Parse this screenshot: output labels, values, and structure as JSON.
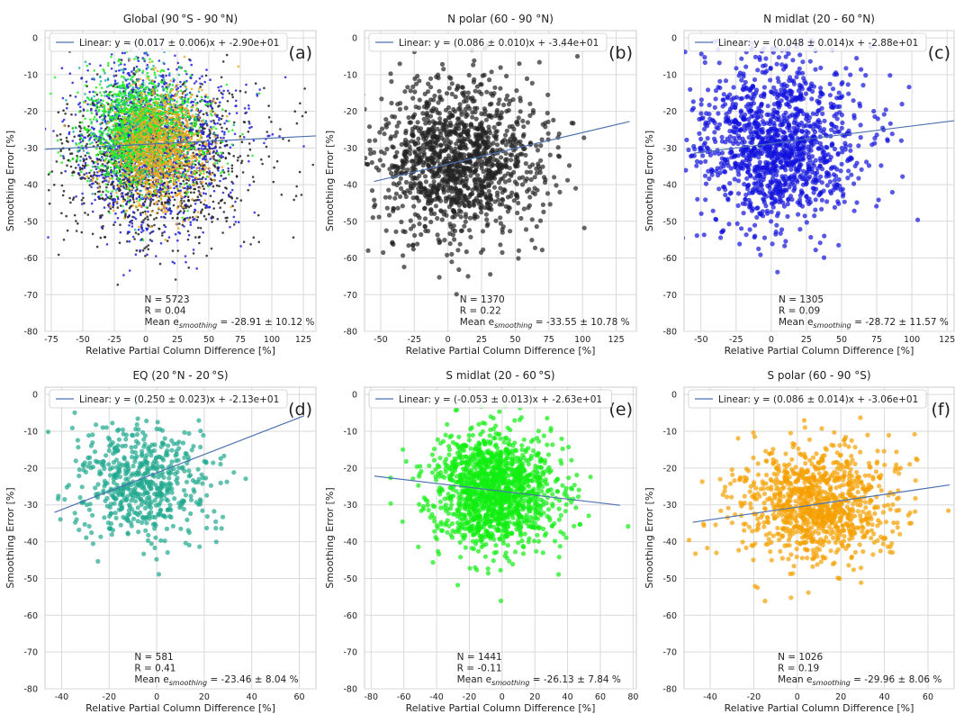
{
  "chart_data": [
    {
      "type": "scatter",
      "title": "Global (90$^\\circ$S - 90$^\\circ$N)",
      "title_display": "Global (90 °S - 90 °N)",
      "panel_label": "(a)",
      "xlabel": "Relative Partial Column Difference [%]",
      "ylabel": "Smoothing Error [%]",
      "xlim": [
        -80,
        135
      ],
      "ylim": [
        -80,
        2
      ],
      "xticks": [
        -75,
        -50,
        -25,
        0,
        25,
        50,
        75,
        100,
        125
      ],
      "yticks": [
        0,
        -10,
        -20,
        -30,
        -40,
        -50,
        -60,
        -70,
        -80
      ],
      "grid": true,
      "legend": {
        "location": "top-left",
        "entry": "Linear: y = (0.017 ± 0.006)x + -2.90e+01"
      },
      "fit": {
        "slope": 0.017,
        "intercept": -29.0,
        "x_range": [
          -80,
          135
        ]
      },
      "stats": {
        "n": "N = 5723",
        "r": "R = 0.04",
        "mean_prefix": "Mean e",
        "mean_sub": "smoothing",
        "mean_value": " = -28.91 ± 10.12 %"
      },
      "marker_size": "small",
      "points": {
        "count": 5723,
        "subsets": [
          {
            "color": "#222222",
            "count": 1370,
            "x_mean": 4,
            "x_std": 35,
            "y_mean": -33.5,
            "y_std": 10.8
          },
          {
            "color": "#2222dd",
            "count": 1305,
            "x_mean": 2,
            "x_std": 30,
            "y_mean": -28.7,
            "y_std": 11.6
          },
          {
            "color": "#20b2a0",
            "count": 581,
            "x_mean": -5,
            "x_std": 18,
            "y_mean": -23.5,
            "y_std": 8
          },
          {
            "color": "#22ee22",
            "count": 1441,
            "x_mean": -5,
            "x_std": 22,
            "y_mean": -26.1,
            "y_std": 7.8
          },
          {
            "color": "#f5a623",
            "count": 1026,
            "x_mean": 8,
            "x_std": 18,
            "y_mean": -30,
            "y_std": 8
          }
        ]
      }
    },
    {
      "type": "scatter",
      "title": "N polar (60 - 90 $^\\circ$N)",
      "title_display": "N polar (60 - 90 °N)",
      "panel_label": "(b)",
      "xlabel": "Relative Partial Column Difference [%]",
      "ylabel": "Smoothing Error [%]",
      "xlim": [
        -62,
        140
      ],
      "ylim": [
        -80,
        2
      ],
      "xticks": [
        -50,
        -25,
        0,
        25,
        50,
        75,
        100,
        125
      ],
      "yticks": [
        0,
        -10,
        -20,
        -30,
        -40,
        -50,
        -60,
        -70,
        -80
      ],
      "grid": true,
      "legend": {
        "location": "top-left",
        "entry": "Linear: y = (0.086 ± 0.010)x + -3.44e+01"
      },
      "fit": {
        "slope": 0.086,
        "intercept": -34.4,
        "x_range": [
          -55,
          135
        ]
      },
      "stats": {
        "n": "N = 1370",
        "r": "R = 0.22",
        "mean_prefix": "Mean e",
        "mean_sub": "smoothing",
        "mean_value": " = -33.55 ± 10.78 %"
      },
      "marker_size": "large",
      "points": {
        "count": 1370,
        "subsets": [
          {
            "color": "#222222",
            "count": 1370,
            "x_mean": 4,
            "x_std": 30,
            "y_mean": -33.5,
            "y_std": 10.8
          }
        ]
      }
    },
    {
      "type": "scatter",
      "title": "N midlat (20 - 60$^\\circ$N)",
      "title_display": "N midlat (20 - 60 °N)",
      "panel_label": "(c)",
      "xlabel": "Relative Partial Column Difference [%]",
      "ylabel": "Smoothing Error [%]",
      "xlim": [
        -62,
        130
      ],
      "ylim": [
        -80,
        2
      ],
      "xticks": [
        -50,
        -25,
        0,
        25,
        50,
        75,
        100,
        125
      ],
      "yticks": [
        0,
        -10,
        -20,
        -30,
        -40,
        -50,
        -60,
        -70,
        -80
      ],
      "grid": true,
      "legend": {
        "location": "top-left",
        "entry": "Linear: y = (0.048 ± 0.014)x + -2.88e+01"
      },
      "fit": {
        "slope": 0.048,
        "intercept": -28.8,
        "x_range": [
          -55,
          130
        ]
      },
      "stats": {
        "n": "N = 1305",
        "r": "R = 0.09",
        "mean_prefix": "Mean e",
        "mean_sub": "smoothing",
        "mean_value": " = -28.72 ± 11.57 %"
      },
      "marker_size": "large",
      "points": {
        "count": 1305,
        "subsets": [
          {
            "color": "#1111dd",
            "count": 1305,
            "x_mean": 2,
            "x_std": 28,
            "y_mean": -28.7,
            "y_std": 11.6
          }
        ]
      }
    },
    {
      "type": "scatter",
      "title": "EQ (20$^\\circ$N - 20$^\\circ$S)",
      "title_display": "EQ (20 °N - 20 °S)",
      "panel_label": "(d)",
      "xlabel": "Relative Partial Column Difference [%]",
      "ylabel": "Smoothing Error [%]",
      "xlim": [
        -47,
        67
      ],
      "ylim": [
        -80,
        2
      ],
      "xticks": [
        -40,
        -20,
        0,
        20,
        40,
        60
      ],
      "yticks": [
        0,
        -10,
        -20,
        -30,
        -40,
        -50,
        -60,
        -70,
        -80
      ],
      "grid": true,
      "legend": {
        "location": "top-left",
        "entry": "Linear: y = (0.250 ± 0.023)x + -2.13e+01"
      },
      "fit": {
        "slope": 0.25,
        "intercept": -21.3,
        "x_range": [
          -43,
          62
        ]
      },
      "stats": {
        "n": "N = 581",
        "r": "R = 0.41",
        "mean_prefix": "Mean e",
        "mean_sub": "smoothing",
        "mean_value": " = -23.46 ± 8.04 %"
      },
      "marker_size": "large",
      "points": {
        "count": 581,
        "subsets": [
          {
            "color": "#1fa88f",
            "count": 581,
            "x_mean": -8,
            "x_std": 14,
            "y_mean": -23.5,
            "y_std": 8
          }
        ]
      }
    },
    {
      "type": "scatter",
      "title": "S midlat (20 - 60$^\\circ$S)",
      "title_display": "S midlat (20 - 60 °S)",
      "panel_label": "(e)",
      "xlabel": "Relative Partial Column Difference [%]",
      "ylabel": "Smoothing Error [%]",
      "xlim": [
        -84,
        82
      ],
      "ylim": [
        -80,
        2
      ],
      "xticks": [
        -80,
        -60,
        -40,
        -20,
        0,
        20,
        40,
        60,
        80
      ],
      "yticks": [
        0,
        -10,
        -20,
        -30,
        -40,
        -50,
        -60,
        -70,
        -80
      ],
      "grid": true,
      "legend": {
        "location": "top-left",
        "entry": "Linear: y = (-0.053 ± 0.013)x + -2.63e+01"
      },
      "fit": {
        "slope": -0.053,
        "intercept": -26.3,
        "x_range": [
          -78,
          72
        ]
      },
      "stats": {
        "n": "N = 1441",
        "r": "R = -0.11",
        "mean_prefix": "Mean e",
        "mean_sub": "smoothing",
        "mean_value": " = -26.13 ± 7.84 %"
      },
      "marker_size": "large",
      "points": {
        "count": 1441,
        "subsets": [
          {
            "color": "#11ee11",
            "count": 1441,
            "x_mean": -6,
            "x_std": 18,
            "y_mean": -26.1,
            "y_std": 7.8
          }
        ]
      }
    },
    {
      "type": "scatter",
      "title": "S polar (60 - 90 $^\\circ$S)",
      "title_display": "S polar (60 - 90 °S)",
      "panel_label": "(f)",
      "xlabel": "Relative Partial Column Difference [%]",
      "ylabel": "Smoothing Error [%]",
      "xlim": [
        -52,
        72
      ],
      "ylim": [
        -80,
        2
      ],
      "xticks": [
        -40,
        -20,
        0,
        20,
        40,
        60
      ],
      "yticks": [
        0,
        -10,
        -20,
        -30,
        -40,
        -50,
        -60,
        -70,
        -80
      ],
      "grid": true,
      "legend": {
        "location": "top-left",
        "entry": "Linear: y = (0.086 ± 0.014)x + -3.06e+01"
      },
      "fit": {
        "slope": 0.086,
        "intercept": -30.6,
        "x_range": [
          -48,
          70
        ]
      },
      "stats": {
        "n": "N = 1026",
        "r": "R = 0.19",
        "mean_prefix": "Mean e",
        "mean_sub": "smoothing",
        "mean_value": " = -29.96 ± 8.06 %"
      },
      "marker_size": "large",
      "points": {
        "count": 1026,
        "subsets": [
          {
            "color": "#f5a000",
            "count": 1026,
            "x_mean": 8,
            "x_std": 17,
            "y_mean": -30,
            "y_std": 8
          }
        ]
      }
    }
  ],
  "colors": {
    "fit_line": "#4c72b0",
    "grid": "#d9d9d9",
    "axes_border": "#cccccc",
    "text": "#222222"
  }
}
